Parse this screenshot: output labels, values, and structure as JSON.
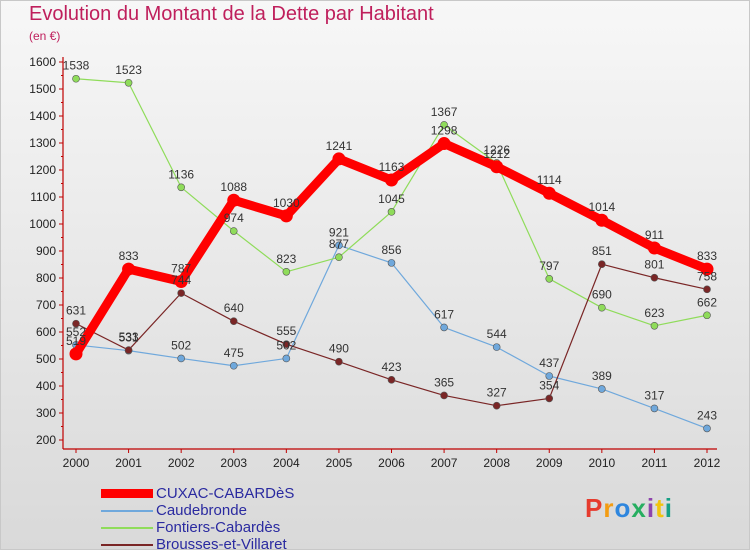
{
  "title": "Evolution du Montant de la Dette par Habitant",
  "subtitle": "(en €)",
  "logo": {
    "text": "Proxiti",
    "colors": [
      "#e63b2e",
      "#f39c12",
      "#2e86de",
      "#27ae60",
      "#8e44ad",
      "#f1c40f",
      "#16a085"
    ]
  },
  "chart_data": {
    "type": "line",
    "title": "Evolution du Montant de la Dette par Habitant",
    "subtitle": "(en €)",
    "x": [
      "2000",
      "2001",
      "2002",
      "2003",
      "2004",
      "2005",
      "2006",
      "2007",
      "2008",
      "2009",
      "2010",
      "2011",
      "2012"
    ],
    "yticks": [
      "200",
      "300",
      "400",
      "500",
      "600",
      "700",
      "800",
      "900",
      "1000",
      "1100",
      "1200",
      "1300",
      "1400",
      "1500",
      "1600"
    ],
    "ylim": [
      200,
      1600
    ],
    "grid": false,
    "legend_position": "bottom-left",
    "series": [
      {
        "name": "CUXAC-CABARDèS",
        "color": "#ff0000",
        "width": 9,
        "values": [
          519,
          833,
          787,
          1088,
          1030,
          1241,
          1163,
          1298,
          1212,
          1114,
          1014,
          911,
          833
        ],
        "labels": [
          "519",
          "833",
          "787",
          "1088",
          "1030",
          "1241",
          "1163",
          "1298",
          "1212",
          "1114",
          "1014",
          "911",
          "833"
        ]
      },
      {
        "name": "Caudebronde",
        "color": "#6fa8dc",
        "width": 1.2,
        "values": [
          552,
          531,
          502,
          475,
          502,
          921,
          856,
          617,
          544,
          437,
          389,
          317,
          243
        ],
        "labels": [
          "552",
          "531",
          "502",
          "475",
          "502",
          "921",
          "856",
          "617",
          "544",
          "437",
          "389",
          "317",
          "243"
        ]
      },
      {
        "name": "Fontiers-Cabardès",
        "color": "#8fdc5a",
        "width": 1.2,
        "values": [
          1538,
          1523,
          1136,
          974,
          823,
          877,
          1045,
          1367,
          1226,
          797,
          690,
          623,
          662
        ],
        "labels": [
          "1538",
          "1523",
          "1136",
          "974",
          "823",
          "877",
          "1045",
          "1367",
          "1226",
          "797",
          "690",
          "623",
          "662"
        ]
      },
      {
        "name": "Brousses-et-Villaret",
        "color": "#7a2626",
        "width": 1.2,
        "values": [
          631,
          533,
          744,
          640,
          555,
          490,
          423,
          365,
          327,
          354,
          851,
          801,
          758
        ],
        "labels": [
          "631",
          "533",
          "744",
          "640",
          "555",
          "490",
          "423",
          "365",
          "327",
          "354",
          "851",
          "801",
          "758"
        ]
      }
    ]
  }
}
